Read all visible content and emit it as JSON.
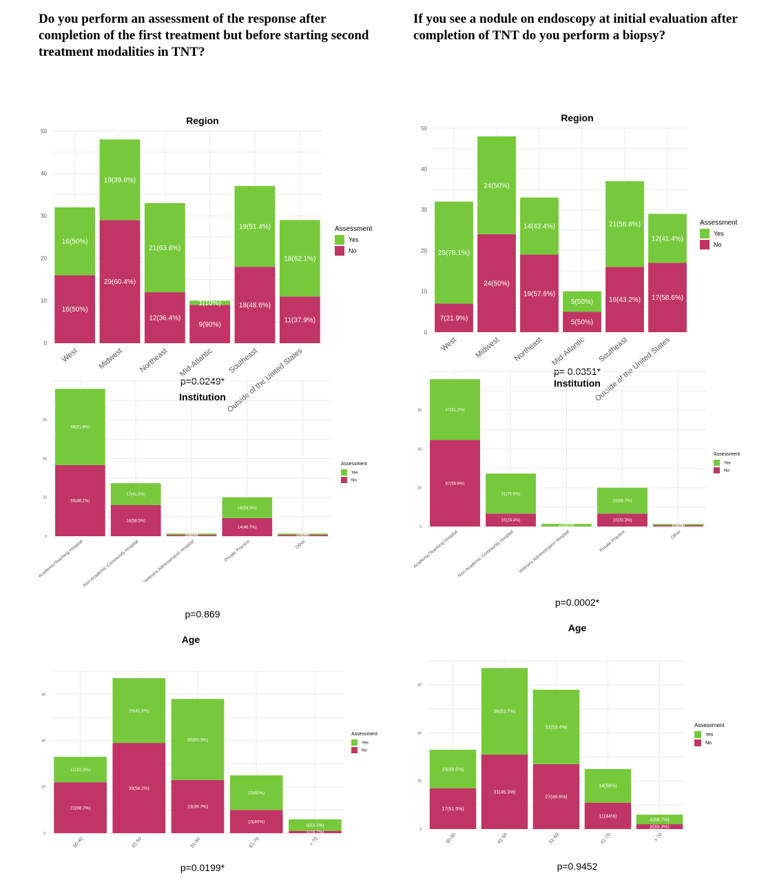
{
  "questions": {
    "left": "Do you perform an assessment of the response after completion of  the first treatment but before starting second treatment modalities in TNT?",
    "right": "If you see a nodule on endoscopy at initial evaluation after completion of TNT do you perform a biopsy?"
  },
  "colors": {
    "yes": "#76c93b",
    "no": "#c03565"
  },
  "chart_data": [
    {
      "id": "left-region",
      "type": "bar",
      "stacked": true,
      "title": "Region",
      "pvalue": "p=0.0249*",
      "legend_title": "Assessment",
      "legend_items": [
        "Yes",
        "No"
      ],
      "ylim": [
        0,
        50
      ],
      "yticks": [
        0,
        10,
        20,
        30,
        40,
        50
      ],
      "categories": [
        "West",
        "Midwest",
        "Northeast",
        "Mid-Atlantic",
        "Southeast",
        "Outside of the United States"
      ],
      "series": [
        {
          "name": "No",
          "values": [
            16,
            29,
            12,
            9,
            18,
            11
          ],
          "labels": [
            "16(50%)",
            "29(60.4%)",
            "12(36.4%)",
            "9(90%)",
            "18(48.6%)",
            "11(37.9%)"
          ]
        },
        {
          "name": "Yes",
          "values": [
            16,
            19,
            21,
            1,
            19,
            18
          ],
          "labels": [
            "16(50%)",
            "19(39.6%)",
            "21(63.6%)",
            "1(10%)",
            "19(51.4%)",
            "18(62.1%)"
          ]
        }
      ]
    },
    {
      "id": "right-region",
      "type": "bar",
      "stacked": true,
      "title": "Region",
      "pvalue": "p= 0.0351*",
      "legend_title": "Assessment",
      "legend_items": [
        "Yes",
        "No"
      ],
      "ylim": [
        0,
        50
      ],
      "yticks": [
        0,
        10,
        20,
        30,
        40,
        50
      ],
      "categories": [
        "West",
        "Midwest",
        "Northeast",
        "Mid-Atlantic",
        "Southeast",
        "Outside of the United States"
      ],
      "series": [
        {
          "name": "No",
          "values": [
            7,
            24,
            19,
            5,
            16,
            17
          ],
          "labels": [
            "7(21.9%)",
            "24(50%)",
            "19(57.6%)",
            "5(50%)",
            "16(43.2%)",
            "17(58.6%)"
          ]
        },
        {
          "name": "Yes",
          "values": [
            25,
            24,
            14,
            5,
            21,
            12
          ],
          "labels": [
            "25(78.1%)",
            "24(50%)",
            "14(42.4%)",
            "5(50%)",
            "21(56.8%)",
            "12(41.4%)"
          ]
        }
      ]
    },
    {
      "id": "left-institution",
      "type": "bar",
      "stacked": true,
      "title": "Institution",
      "pvalue": "p=0.869",
      "legend_title": "Assessment",
      "legend_items": [
        "Yes",
        "No"
      ],
      "ylim": [
        0,
        120
      ],
      "yticks": [
        0,
        30,
        60,
        90
      ],
      "categories": [
        "Academic/Teaching Hospital",
        "Non-Academic Community Hospital",
        "Veterans Administration Hospital",
        "Private Practice",
        "Other"
      ],
      "series": [
        {
          "name": "No",
          "values": [
            55,
            24,
            1,
            14,
            1
          ],
          "labels": [
            "55(48.2%)",
            "24(58.5%)",
            "1(50%)",
            "14(46.7%)",
            "1(50%)"
          ]
        },
        {
          "name": "Yes",
          "values": [
            59,
            17,
            1,
            16,
            1
          ],
          "labels": [
            "59(51.8%)",
            "17(41.5%)",
            "1(50%)",
            "16(53.3%)",
            "1(50%)"
          ]
        }
      ]
    },
    {
      "id": "right-institution",
      "type": "bar",
      "stacked": true,
      "title": "Institution",
      "pvalue": "p=0.0002*",
      "legend_title": "Assessment",
      "legend_items": [
        "Yes",
        "No"
      ],
      "ylim": [
        0,
        120
      ],
      "yticks": [
        0,
        30,
        60,
        90
      ],
      "categories": [
        "Academic/Teaching Hospital",
        "Non-Academic Community Hospital",
        "Veterans Administration Hospital",
        "Private Practice",
        "Other"
      ],
      "series": [
        {
          "name": "No",
          "values": [
            67,
            10,
            0,
            10,
            1
          ],
          "labels": [
            "67(58.8%)",
            "10(24.4%)",
            "",
            "10(33.3%)",
            "1(50%)"
          ]
        },
        {
          "name": "Yes",
          "values": [
            47,
            31,
            2,
            20,
            1
          ],
          "labels": [
            "47(41.2%)",
            "31(75.6%)",
            "2(100%)",
            "20(66.7%)",
            "1(50%)"
          ]
        }
      ]
    },
    {
      "id": "left-age",
      "type": "bar",
      "stacked": true,
      "title": "Age",
      "pvalue": "p=0.0199*",
      "legend_title": "Assessment",
      "legend_items": [
        "Yes",
        "No"
      ],
      "ylim": [
        0,
        70
      ],
      "yticks": [
        0,
        20,
        40,
        60
      ],
      "categories": [
        "30-40",
        "41-50",
        "51-60",
        "61-70",
        "> 70"
      ],
      "series": [
        {
          "name": "No",
          "values": [
            22,
            39,
            23,
            10,
            1
          ],
          "labels": [
            "22(66.7%)",
            "39(58.2%)",
            "23(39.7%)",
            "10(40%)",
            "1(16.7%)"
          ]
        },
        {
          "name": "Yes",
          "values": [
            11,
            28,
            35,
            15,
            5
          ],
          "labels": [
            "11(33.3%)",
            "28(41.8%)",
            "35(60.3%)",
            "15(60%)",
            "5(83.3%)"
          ]
        }
      ]
    },
    {
      "id": "right-age",
      "type": "bar",
      "stacked": true,
      "title": "Age",
      "pvalue": "p=0.9452",
      "legend_title": "Assessment",
      "legend_items": [
        "Yes",
        "No"
      ],
      "ylim": [
        0,
        70
      ],
      "yticks": [
        0,
        20,
        40,
        60
      ],
      "categories": [
        "30-40",
        "41-50",
        "51-60",
        "61-70",
        "> 70"
      ],
      "series": [
        {
          "name": "No",
          "values": [
            17,
            31,
            27,
            11,
            2
          ],
          "labels": [
            "17(51.5%)",
            "31(46.3%)",
            "27(46.6%)",
            "11(44%)",
            "2(33.3%)"
          ]
        },
        {
          "name": "Yes",
          "values": [
            16,
            36,
            31,
            14,
            4
          ],
          "labels": [
            "16(48.5%)",
            "36(53.7%)",
            "31(53.4%)",
            "14(56%)",
            "4(66.7%)"
          ]
        }
      ]
    }
  ]
}
